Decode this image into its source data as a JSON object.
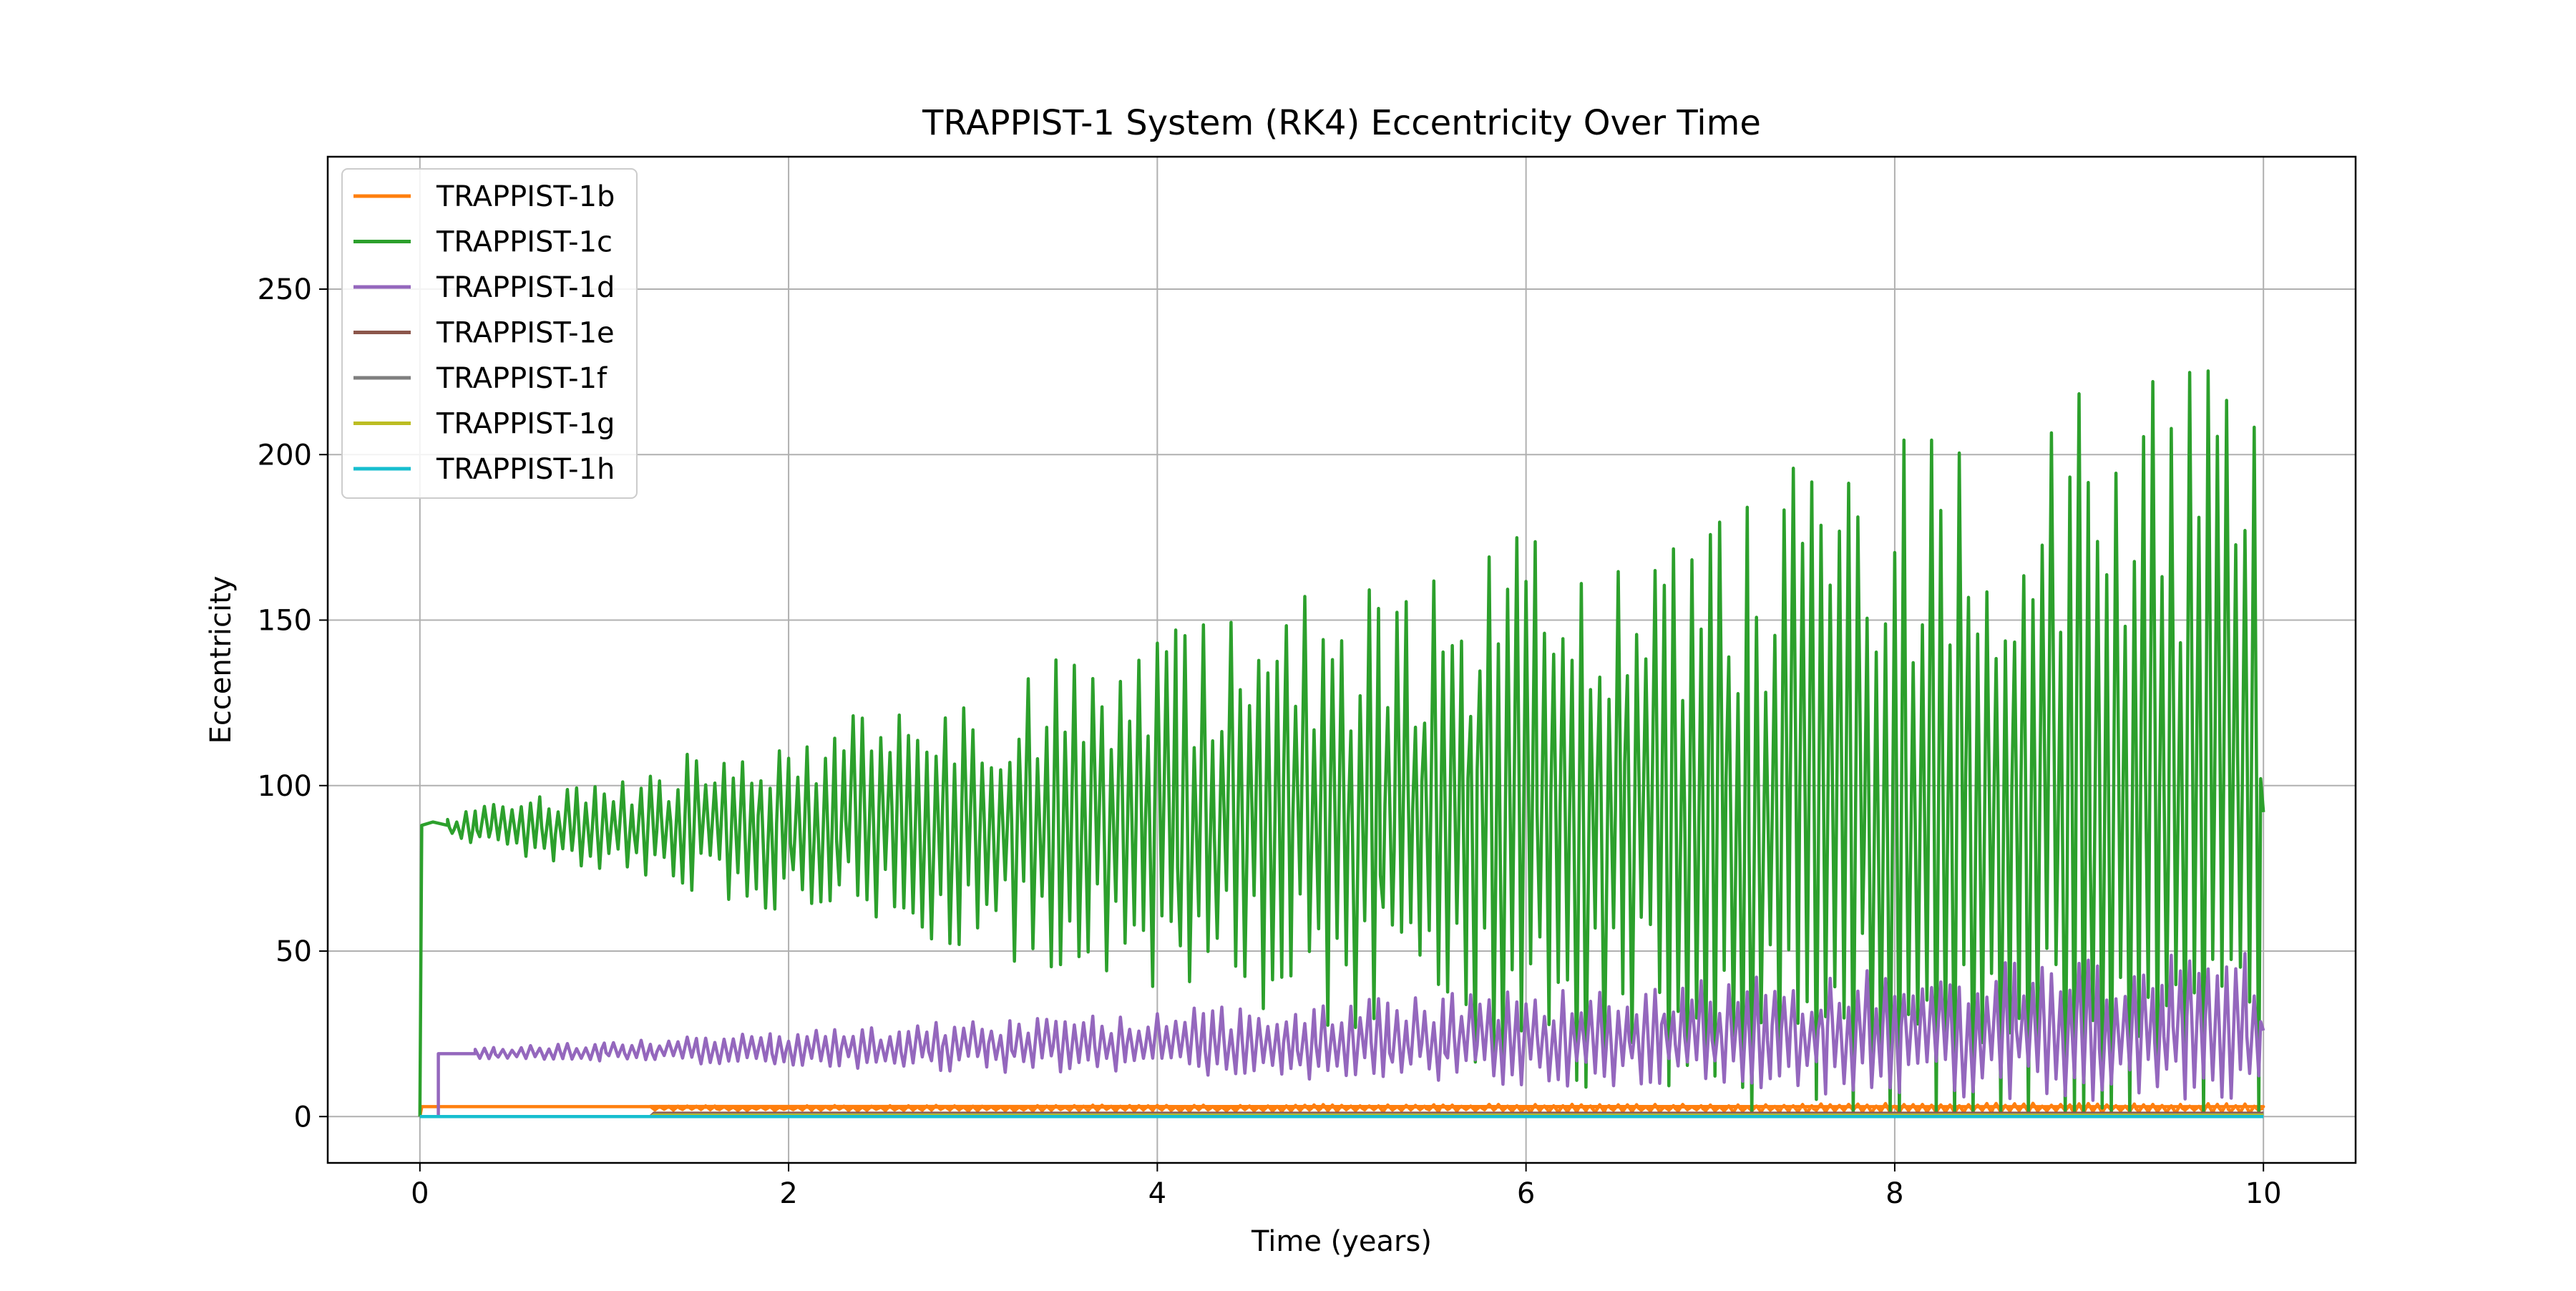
{
  "chart_data": {
    "type": "line",
    "title": "TRAPPIST-1 System (RK4) Eccentricity Over Time",
    "xlabel": "Time (years)",
    "ylabel": "Eccentricity",
    "xlim": [
      -0.5,
      10.5
    ],
    "ylim": [
      -14,
      290
    ],
    "xticks": [
      0,
      2,
      4,
      6,
      8,
      10
    ],
    "yticks": [
      0,
      50,
      100,
      150,
      200,
      250
    ],
    "grid": true,
    "legend_position": "top-left",
    "series": [
      {
        "name": "TRAPPIST-1b",
        "color": "#ff7f0e",
        "points": [
          [
            0,
            0
          ],
          [
            0.01,
            3
          ],
          [
            1.25,
            3
          ],
          [
            1.3,
            2.8
          ],
          [
            10,
            3
          ]
        ],
        "oscillation": {
          "start": 1.25,
          "end": 10,
          "center": [
            2.5,
            2.5
          ],
          "amplitude": [
            0.7,
            1.6
          ],
          "period": 0.1
        }
      },
      {
        "name": "TRAPPIST-1c",
        "color": "#2ca02c",
        "points": [
          [
            0,
            0
          ],
          [
            0.01,
            88
          ],
          [
            0.07,
            89
          ],
          [
            0.15,
            88
          ]
        ],
        "oscillation": {
          "start": 0.15,
          "end": 10,
          "center": [
            87,
            92
          ],
          "amplitude": [
            4,
            135
          ],
          "period": 0.1
        }
      },
      {
        "name": "TRAPPIST-1d",
        "color": "#9467bd",
        "points": [
          [
            0,
            0
          ],
          [
            0.1,
            0
          ],
          [
            0.1,
            19
          ],
          [
            0.3,
            19
          ]
        ],
        "oscillation": {
          "start": 0.3,
          "end": 10,
          "center": [
            19,
            26
          ],
          "amplitude": [
            1.5,
            24
          ],
          "period": 0.1
        }
      },
      {
        "name": "TRAPPIST-1e",
        "color": "#8c564b",
        "points": [
          [
            0,
            0
          ],
          [
            1.25,
            0
          ],
          [
            1.27,
            1
          ],
          [
            10,
            1
          ]
        ]
      },
      {
        "name": "TRAPPIST-1f",
        "color": "#7f7f7f",
        "points": [
          [
            0,
            0
          ],
          [
            1.25,
            0
          ],
          [
            1.27,
            0.6
          ],
          [
            10,
            0.6
          ]
        ]
      },
      {
        "name": "TRAPPIST-1g",
        "color": "#bcbd22",
        "points": [
          [
            0,
            0
          ],
          [
            1.25,
            0
          ],
          [
            1.27,
            0.4
          ],
          [
            10,
            0.4
          ]
        ]
      },
      {
        "name": "TRAPPIST-1h",
        "color": "#17becf",
        "points": [
          [
            0,
            0
          ],
          [
            10,
            0
          ]
        ]
      }
    ]
  }
}
